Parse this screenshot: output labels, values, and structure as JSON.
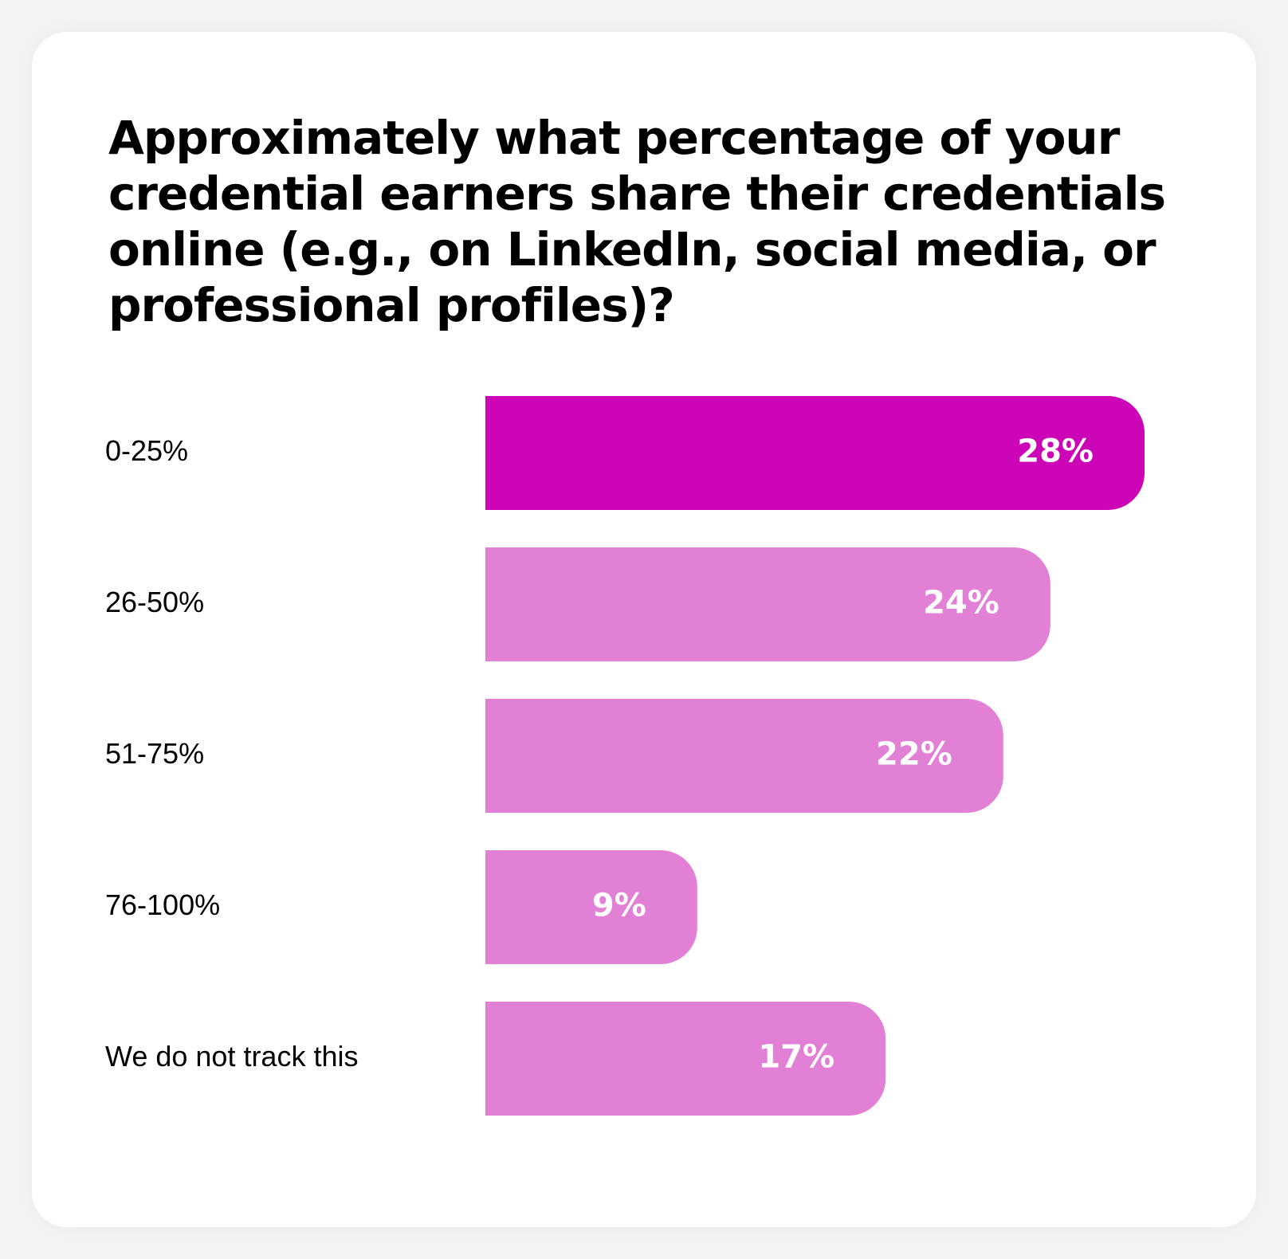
{
  "colors": {
    "highlight": "#cc06b6",
    "bar": "#e280d6",
    "value_text": "#ffffff"
  },
  "chart_data": {
    "type": "bar",
    "orientation": "horizontal",
    "title": "Approximately what percentage of your credential earners share their credentials online (e.g., on LinkedIn, social media, or professional profiles)?",
    "categories": [
      "0-25%",
      "26-50%",
      "51-75%",
      "76-100%",
      "We do not track this"
    ],
    "values": [
      28,
      24,
      22,
      9,
      17
    ],
    "value_labels": [
      "28%",
      "24%",
      "22%",
      "9%",
      "17%"
    ],
    "highlight_index": 0,
    "grid": false,
    "legend": "none",
    "xlim": [
      0,
      28
    ]
  }
}
